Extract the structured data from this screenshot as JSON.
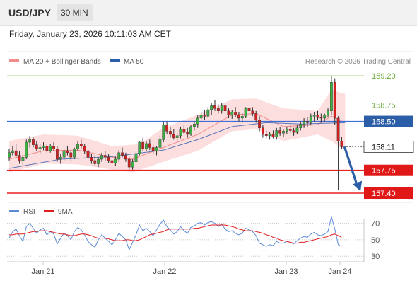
{
  "header": {
    "symbol": "USD/JPY",
    "timeframe": "30 MIN",
    "datetime": "Friday, January 23, 2026 10:11:03 AM CET"
  },
  "chart_data": [
    {
      "type": "candlestick",
      "title": "USD/JPY",
      "legend": [
        {
          "label": "MA 20 + Bollinger Bands",
          "color": "#f28b8b"
        },
        {
          "label": "MA 50",
          "color": "#2c5ea8"
        }
      ],
      "credit": "Research © 2026 Trading Central",
      "x_tick_labels": [
        "Jan 21",
        "Jan 22",
        "Jan 23",
        "Jan 24"
      ],
      "price_levels": [
        {
          "value": 159.2,
          "label": "159.20",
          "style": "resistance-green"
        },
        {
          "value": 158.75,
          "label": "158.75",
          "style": "resistance-green"
        },
        {
          "value": 158.5,
          "label": "158.50",
          "style": "pivot-blue"
        },
        {
          "value": 158.11,
          "label": "158.11",
          "style": "last-price"
        },
        {
          "value": 157.75,
          "label": "157.75",
          "style": "support-red"
        },
        {
          "value": 157.4,
          "label": "157.40",
          "style": "support-red"
        }
      ],
      "ylim": [
        157.34,
        159.29
      ],
      "annotation": "arrow pointing down toward 157.40",
      "candles": [
        [
          157.95,
          158.08,
          157.9,
          158.02
        ],
        [
          158.02,
          158.12,
          157.98,
          158.05
        ],
        [
          158.05,
          158.15,
          157.95,
          157.98
        ],
        [
          157.98,
          158.05,
          157.85,
          157.9
        ],
        [
          157.9,
          158.0,
          157.82,
          157.95
        ],
        [
          157.95,
          158.22,
          157.92,
          158.18
        ],
        [
          158.18,
          158.28,
          158.1,
          158.22
        ],
        [
          158.22,
          158.26,
          158.1,
          158.14
        ],
        [
          158.14,
          158.2,
          158.05,
          158.08
        ],
        [
          158.08,
          158.15,
          158.0,
          158.1
        ],
        [
          158.1,
          158.18,
          158.06,
          158.12
        ],
        [
          158.12,
          158.16,
          158.02,
          158.05
        ],
        [
          158.05,
          158.15,
          158.02,
          158.12
        ],
        [
          158.12,
          158.18,
          158.05,
          158.08
        ],
        [
          158.08,
          158.12,
          157.88,
          157.92
        ],
        [
          157.92,
          158.0,
          157.85,
          157.95
        ],
        [
          157.95,
          158.08,
          157.9,
          158.05
        ],
        [
          158.05,
          158.12,
          157.98,
          158.02
        ],
        [
          158.02,
          158.06,
          157.9,
          157.95
        ],
        [
          157.95,
          158.1,
          157.92,
          158.08
        ],
        [
          158.08,
          158.2,
          158.05,
          158.15
        ],
        [
          158.15,
          158.22,
          158.08,
          158.12
        ],
        [
          158.12,
          158.16,
          158.0,
          158.05
        ],
        [
          158.05,
          158.08,
          157.9,
          157.95
        ],
        [
          157.95,
          158.0,
          157.85,
          157.9
        ],
        [
          157.9,
          157.98,
          157.82,
          157.85
        ],
        [
          157.85,
          157.95,
          157.8,
          157.92
        ],
        [
          157.92,
          158.02,
          157.88,
          157.98
        ],
        [
          157.98,
          158.05,
          157.9,
          157.95
        ],
        [
          157.95,
          158.0,
          157.86,
          157.9
        ],
        [
          157.9,
          157.96,
          157.82,
          157.86
        ],
        [
          157.86,
          157.96,
          157.82,
          157.92
        ],
        [
          157.92,
          158.06,
          157.88,
          158.02
        ],
        [
          158.02,
          158.1,
          157.95,
          157.98
        ],
        [
          157.98,
          158.02,
          157.88,
          157.92
        ],
        [
          157.92,
          157.95,
          157.76,
          157.8
        ],
        [
          157.8,
          157.92,
          157.76,
          157.88
        ],
        [
          157.88,
          158.05,
          157.85,
          158.0
        ],
        [
          158.0,
          158.2,
          157.98,
          158.18
        ],
        [
          158.18,
          158.25,
          158.05,
          158.08
        ],
        [
          158.08,
          158.2,
          158.05,
          158.16
        ],
        [
          158.16,
          158.22,
          158.06,
          158.1
        ],
        [
          158.1,
          158.14,
          158.0,
          158.05
        ],
        [
          158.05,
          158.12,
          157.98,
          158.1
        ],
        [
          158.1,
          158.28,
          158.06,
          158.22
        ],
        [
          158.22,
          158.5,
          158.18,
          158.45
        ],
        [
          158.45,
          158.5,
          158.3,
          158.35
        ],
        [
          158.35,
          158.42,
          158.25,
          158.3
        ],
        [
          158.3,
          158.38,
          158.22,
          158.25
        ],
        [
          158.25,
          158.32,
          158.2,
          158.28
        ],
        [
          158.28,
          158.42,
          158.24,
          158.38
        ],
        [
          158.38,
          158.45,
          158.3,
          158.33
        ],
        [
          158.33,
          158.4,
          158.25,
          158.3
        ],
        [
          158.3,
          158.45,
          158.28,
          158.42
        ],
        [
          158.42,
          158.5,
          158.36,
          158.46
        ],
        [
          158.46,
          158.6,
          158.4,
          158.55
        ],
        [
          158.55,
          158.65,
          158.48,
          158.6
        ],
        [
          158.6,
          158.68,
          158.52,
          158.58
        ],
        [
          158.58,
          158.72,
          158.55,
          158.68
        ],
        [
          158.68,
          158.78,
          158.6,
          158.74
        ],
        [
          158.74,
          158.82,
          158.66,
          158.7
        ],
        [
          158.7,
          158.76,
          158.62,
          158.66
        ],
        [
          158.66,
          158.78,
          158.62,
          158.74
        ],
        [
          158.74,
          158.78,
          158.62,
          158.66
        ],
        [
          158.66,
          158.7,
          158.55,
          158.6
        ],
        [
          158.6,
          158.68,
          158.54,
          158.64
        ],
        [
          158.64,
          158.72,
          158.56,
          158.6
        ],
        [
          158.6,
          158.64,
          158.5,
          158.55
        ],
        [
          158.55,
          158.62,
          158.48,
          158.58
        ],
        [
          158.58,
          158.72,
          158.55,
          158.7
        ],
        [
          158.7,
          158.78,
          158.62,
          158.66
        ],
        [
          158.66,
          158.72,
          158.58,
          158.62
        ],
        [
          158.62,
          158.66,
          158.48,
          158.52
        ],
        [
          158.52,
          158.58,
          158.35,
          158.4
        ],
        [
          158.4,
          158.45,
          158.25,
          158.3
        ],
        [
          158.3,
          158.36,
          158.24,
          158.28
        ],
        [
          158.28,
          158.34,
          158.22,
          158.3
        ],
        [
          158.3,
          158.36,
          158.24,
          158.26
        ],
        [
          158.26,
          158.4,
          158.22,
          158.36
        ],
        [
          158.36,
          158.42,
          158.28,
          158.32
        ],
        [
          158.32,
          158.38,
          158.26,
          158.35
        ],
        [
          158.35,
          158.42,
          158.3,
          158.38
        ],
        [
          158.38,
          158.44,
          158.32,
          158.36
        ],
        [
          158.36,
          158.4,
          158.28,
          158.33
        ],
        [
          158.33,
          158.44,
          158.3,
          158.4
        ],
        [
          158.4,
          158.5,
          158.36,
          158.46
        ],
        [
          158.46,
          158.55,
          158.4,
          158.5
        ],
        [
          158.5,
          158.56,
          158.42,
          158.48
        ],
        [
          158.48,
          158.62,
          158.45,
          158.58
        ],
        [
          158.58,
          158.64,
          158.5,
          158.6
        ],
        [
          158.6,
          158.66,
          158.52,
          158.56
        ],
        [
          158.56,
          158.62,
          158.48,
          158.55
        ],
        [
          158.55,
          158.62,
          158.5,
          158.6
        ],
        [
          158.6,
          158.7,
          158.56,
          158.66
        ],
        [
          158.66,
          159.2,
          158.6,
          159.1
        ],
        [
          159.1,
          159.16,
          158.45,
          158.55
        ],
        [
          158.55,
          158.58,
          157.45,
          158.2
        ],
        [
          158.2,
          158.26,
          158.08,
          158.11
        ]
      ],
      "ma20": [
        [
          0,
          157.92
        ],
        [
          10,
          158.05
        ],
        [
          20,
          158.06
        ],
        [
          30,
          157.95
        ],
        [
          36,
          157.92
        ],
        [
          45,
          158.1
        ],
        [
          55,
          158.3
        ],
        [
          65,
          158.6
        ],
        [
          72,
          158.62
        ],
        [
          80,
          158.42
        ],
        [
          90,
          158.45
        ],
        [
          94,
          158.58
        ],
        [
          98,
          158.48
        ]
      ],
      "bollinger_upper": [
        [
          0,
          158.2
        ],
        [
          10,
          158.3
        ],
        [
          20,
          158.28
        ],
        [
          30,
          158.12
        ],
        [
          38,
          158.15
        ],
        [
          45,
          158.4
        ],
        [
          55,
          158.6
        ],
        [
          65,
          158.84
        ],
        [
          72,
          158.85
        ],
        [
          80,
          158.7
        ],
        [
          90,
          158.66
        ],
        [
          94,
          158.98
        ],
        [
          98,
          158.92
        ]
      ],
      "bollinger_lower": [
        [
          0,
          157.72
        ],
        [
          10,
          157.85
        ],
        [
          20,
          157.84
        ],
        [
          30,
          157.76
        ],
        [
          36,
          157.72
        ],
        [
          45,
          157.88
        ],
        [
          55,
          158.05
        ],
        [
          65,
          158.35
        ],
        [
          72,
          158.38
        ],
        [
          80,
          158.2
        ],
        [
          90,
          158.3
        ],
        [
          94,
          158.2
        ],
        [
          98,
          158.05
        ]
      ],
      "ma50": [
        [
          0,
          157.78
        ],
        [
          15,
          157.92
        ],
        [
          30,
          157.96
        ],
        [
          45,
          158.06
        ],
        [
          55,
          158.22
        ],
        [
          65,
          158.42
        ],
        [
          75,
          158.48
        ],
        [
          85,
          158.46
        ],
        [
          98,
          158.48
        ]
      ]
    },
    {
      "type": "line",
      "title": "RSI",
      "legend": [
        {
          "label": "RSI",
          "color": "#5b8ad8"
        },
        {
          "label": "9MA",
          "color": "#e02020"
        }
      ],
      "ylim": [
        25,
        80
      ],
      "y_ticks": [
        70,
        50,
        30
      ],
      "y_tick_labels": [
        "70",
        "50",
        "30"
      ],
      "series": [
        {
          "name": "RSI",
          "values": [
            52,
            60,
            63,
            55,
            48,
            66,
            70,
            64,
            58,
            62,
            64,
            56,
            60,
            57,
            45,
            52,
            58,
            55,
            50,
            60,
            65,
            62,
            56,
            48,
            44,
            41,
            50,
            56,
            52,
            48,
            44,
            50,
            58,
            54,
            50,
            38,
            47,
            56,
            68,
            61,
            64,
            60,
            55,
            62,
            69,
            74,
            66,
            62,
            57,
            60,
            66,
            61,
            58,
            65,
            67,
            70,
            71,
            68,
            71,
            72,
            70,
            66,
            69,
            63,
            60,
            61,
            58,
            56,
            58,
            64,
            62,
            60,
            55,
            46,
            44,
            42,
            44,
            43,
            48,
            46,
            46,
            48,
            47,
            45,
            49,
            52,
            54,
            53,
            57,
            59,
            56,
            55,
            57,
            60,
            78,
            63,
            44,
            42
          ]
        },
        {
          "name": "9MA",
          "values": [
            56,
            56,
            57,
            57,
            57,
            58,
            59,
            60,
            60,
            61,
            61,
            61,
            60,
            59,
            58,
            57,
            57,
            56,
            55,
            55,
            56,
            57,
            57,
            56,
            55,
            53,
            52,
            52,
            52,
            51,
            50,
            49,
            49,
            49,
            50,
            50,
            49,
            49,
            50,
            52,
            54,
            56,
            57,
            58,
            59,
            60,
            62,
            63,
            63,
            63,
            63,
            63,
            63,
            63,
            64,
            64,
            65,
            66,
            67,
            68,
            68,
            68,
            68,
            68,
            67,
            66,
            65,
            63,
            62,
            61,
            61,
            61,
            60,
            59,
            58,
            56,
            55,
            53,
            52,
            50,
            49,
            48,
            47,
            46,
            46,
            47,
            47,
            48,
            49,
            50,
            51,
            52,
            53,
            54,
            56,
            57,
            55,
            53
          ]
        }
      ]
    }
  ]
}
